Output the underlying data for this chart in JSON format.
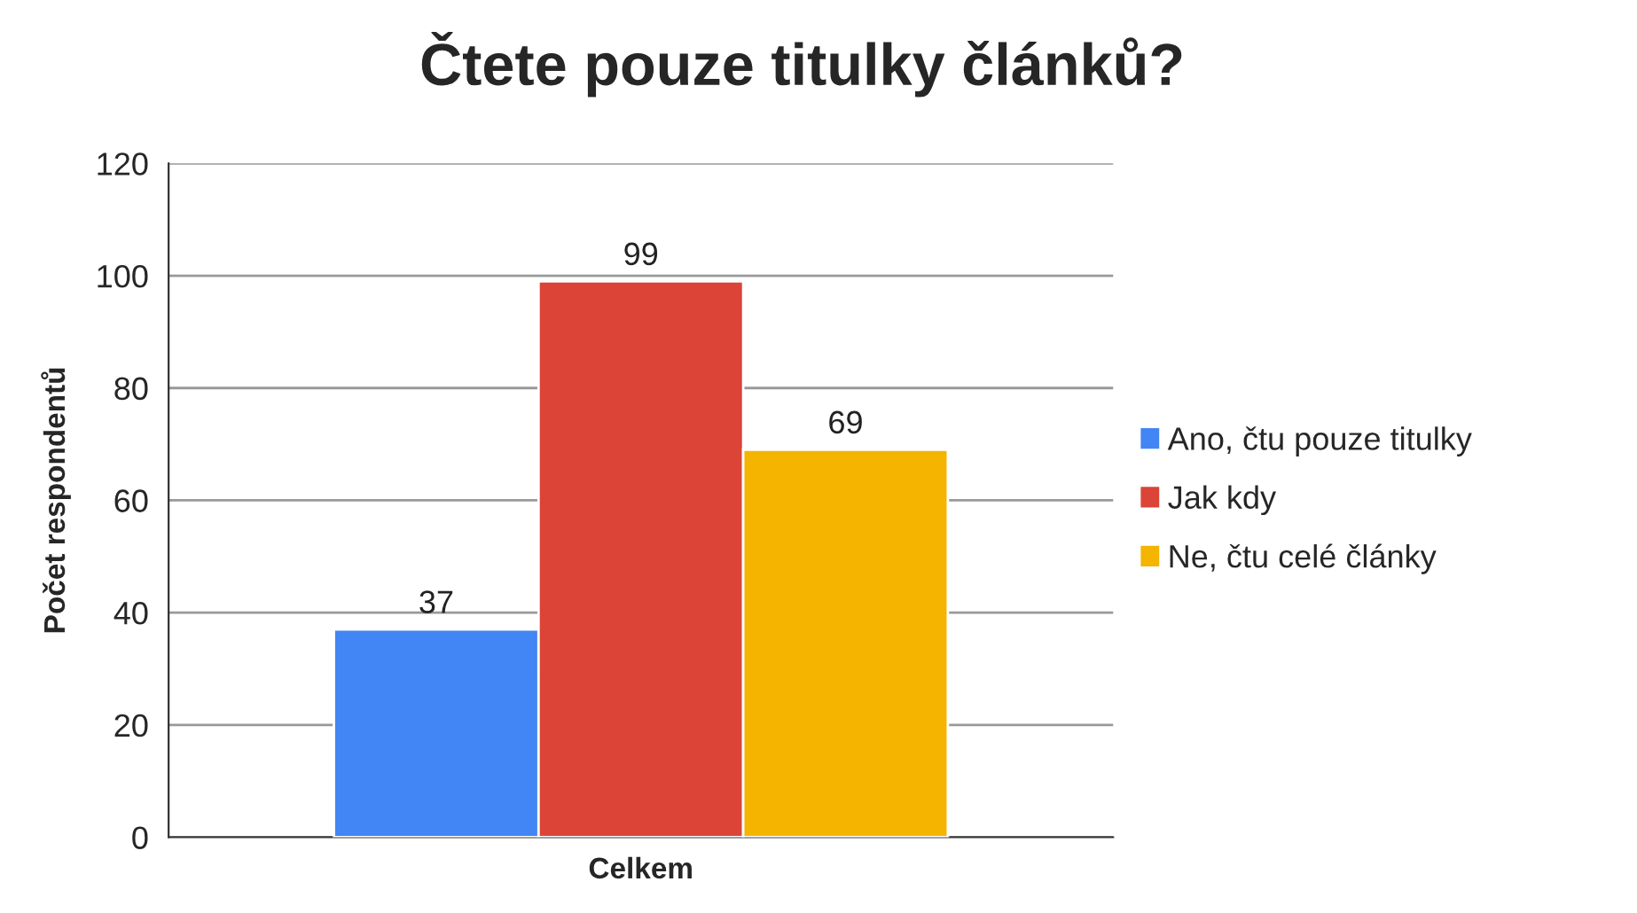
{
  "chart_data": {
    "type": "bar",
    "title": "Čtete pouze titulky článků?",
    "ylabel": "Počet respondentů",
    "categories": [
      "Celkem"
    ],
    "series": [
      {
        "name": "Ano, čtu pouze titulky",
        "color": "#4285f4",
        "values": [
          37
        ]
      },
      {
        "name": "Jak kdy",
        "color": "#db4437",
        "values": [
          99
        ]
      },
      {
        "name": "Ne, čtu celé články",
        "color": "#f4b400",
        "values": [
          69
        ]
      }
    ],
    "ylim": [
      0,
      120
    ],
    "yticks": [
      0,
      20,
      40,
      60,
      80,
      100,
      120
    ],
    "grid": "y",
    "legend": "right",
    "data_labels": true
  }
}
